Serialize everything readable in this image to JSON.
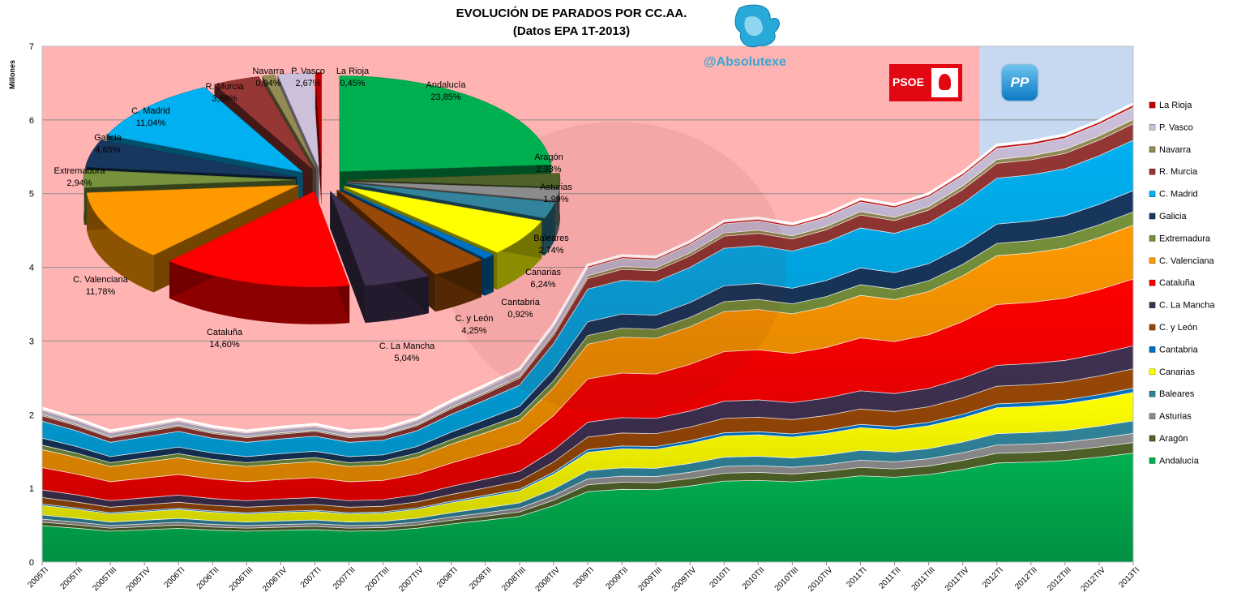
{
  "title_lines": [
    "EVOLUCIÓN DE PARADOS POR CC.AA.",
    "(Datos EPA 1T-2013)"
  ],
  "watermark": "@Absolutexe",
  "logos": {
    "psoe": "PSOE",
    "pp": "PP",
    "eagle": "eagle-logo"
  },
  "colors": {
    "psoe_band": "#ffb3b3",
    "pp_band": "#c6d9f0",
    "psoe_red": "#e30613",
    "pp_blue": "#0b79c4"
  },
  "chart_data": [
    {
      "type": "area",
      "stacked": true,
      "title": "EVOLUCIÓN DE PARADOS POR CC.AA.",
      "subtitle": "(Datos EPA 1T-2013)",
      "ylabel": "Millones",
      "xlabel": "",
      "ylim": [
        0,
        7
      ],
      "yticks": [
        0,
        1,
        2,
        3,
        4,
        5,
        6,
        7
      ],
      "grid": true,
      "legend": "right",
      "bands": [
        {
          "label": "PSOE",
          "from": "2005TI",
          "to": "2011TIV",
          "color": "#ffb3b3"
        },
        {
          "label": "PP",
          "from": "2012TI",
          "to": "2013TI",
          "color": "#c6d9f0"
        }
      ],
      "x": [
        "2005TI",
        "2005TII",
        "2005TIII",
        "2005TIV",
        "2006TI",
        "2006TII",
        "2006TIII",
        "2006TIV",
        "2007TI",
        "2007TII",
        "2007TIII",
        "2007TIV",
        "2008TI",
        "2008TII",
        "2008TIII",
        "2008TIV",
        "2009TI",
        "2009TII",
        "2009TIII",
        "2009TIV",
        "2010TI",
        "2010TII",
        "2010TIII",
        "2010TIV",
        "2011TI",
        "2011TII",
        "2011TIII",
        "2011TIV",
        "2012TI",
        "2012TII",
        "2012TIII",
        "2012TIV",
        "2013TI"
      ],
      "totals": [
        2.07,
        1.93,
        1.76,
        1.84,
        1.92,
        1.82,
        1.76,
        1.81,
        1.85,
        1.76,
        1.79,
        1.93,
        2.17,
        2.38,
        2.6,
        3.21,
        4.01,
        4.14,
        4.12,
        4.33,
        4.61,
        4.65,
        4.57,
        4.7,
        4.91,
        4.83,
        4.98,
        5.27,
        5.64,
        5.69,
        5.78,
        5.97,
        6.2
      ],
      "series": [
        {
          "name": "Andalucía",
          "color": "#00b050",
          "share": 0.2385
        },
        {
          "name": "Aragón",
          "color": "#4f6228",
          "share": 0.0233
        },
        {
          "name": "Asturias",
          "color": "#8c8c8c",
          "share": 0.0199
        },
        {
          "name": "Baleares",
          "color": "#31849b",
          "share": 0.0274
        },
        {
          "name": "Canarias",
          "color": "#ffff00",
          "share": 0.0624
        },
        {
          "name": "Cantabria",
          "color": "#0070c0",
          "share": 0.0092
        },
        {
          "name": "C. y León",
          "color": "#984807",
          "share": 0.0425
        },
        {
          "name": "C. La Mancha",
          "color": "#403152",
          "share": 0.0504
        },
        {
          "name": "Cataluña",
          "color": "#ff0000",
          "share": 0.146
        },
        {
          "name": "C. Valenciana",
          "color": "#ff9900",
          "share": 0.1178
        },
        {
          "name": "Extremadura",
          "color": "#76923c",
          "share": 0.0294
        },
        {
          "name": "Galicia",
          "color": "#17375e",
          "share": 0.0465
        },
        {
          "name": "C. Madrid",
          "color": "#00b0f0",
          "share": 0.1104
        },
        {
          "name": "R. Murcia",
          "color": "#953735",
          "share": 0.0358
        },
        {
          "name": "Navarra",
          "color": "#948a54",
          "share": 0.0094
        },
        {
          "name": "P. Vasco",
          "color": "#ccc0da",
          "share": 0.0267
        },
        {
          "name": "La Rioja",
          "color": "#c00000",
          "share": 0.0045
        }
      ],
      "legend_order": [
        "La Rioja",
        "P. Vasco",
        "Navarra",
        "R. Murcia",
        "C. Madrid",
        "Galicia",
        "Extremadura",
        "C. Valenciana",
        "Cataluña",
        "C. La Mancha",
        "C. y León",
        "Cantabria",
        "Canarias",
        "Baleares",
        "Asturias",
        "Aragón",
        "Andalucía"
      ]
    },
    {
      "type": "pie",
      "title": "",
      "slices": [
        {
          "label": "Andalucía",
          "pct": "23,85%",
          "value": 23.85,
          "color": "#00b050"
        },
        {
          "label": "Aragón",
          "pct": "2,33%",
          "value": 2.33,
          "color": "#4f6228"
        },
        {
          "label": "Asturias",
          "pct": "1,99%",
          "value": 1.99,
          "color": "#8c8c8c"
        },
        {
          "label": "Baleares",
          "pct": "2,74%",
          "value": 2.74,
          "color": "#31849b"
        },
        {
          "label": "Canarias",
          "pct": "6,24%",
          "value": 6.24,
          "color": "#ffff00"
        },
        {
          "label": "Cantabria",
          "pct": "0,92%",
          "value": 0.92,
          "color": "#0070c0"
        },
        {
          "label": "C. y León",
          "pct": "4,25%",
          "value": 4.25,
          "color": "#984807"
        },
        {
          "label": "C. La Mancha",
          "pct": "5,04%",
          "value": 5.04,
          "color": "#403152"
        },
        {
          "label": "Cataluña",
          "pct": "14,60%",
          "value": 14.6,
          "color": "#ff0000"
        },
        {
          "label": "C. Valenciana",
          "pct": "11,78%",
          "value": 11.78,
          "color": "#ff9900"
        },
        {
          "label": "Extremadura",
          "pct": "2,94%",
          "value": 2.94,
          "color": "#76923c"
        },
        {
          "label": "Galicia",
          "pct": "4,65%",
          "value": 4.65,
          "color": "#17375e"
        },
        {
          "label": "C. Madrid",
          "pct": "11,04%",
          "value": 11.04,
          "color": "#00b0f0"
        },
        {
          "label": "R. Murcia",
          "pct": "3,58%",
          "value": 3.58,
          "color": "#953735"
        },
        {
          "label": "Navarra",
          "pct": "0,94%",
          "value": 0.94,
          "color": "#948a54"
        },
        {
          "label": "P. Vasco",
          "pct": "2,67%",
          "value": 2.67,
          "color": "#ccc0da"
        },
        {
          "label": "La Rioja",
          "pct": "0,45%",
          "value": 0.45,
          "color": "#c00000"
        }
      ]
    }
  ]
}
